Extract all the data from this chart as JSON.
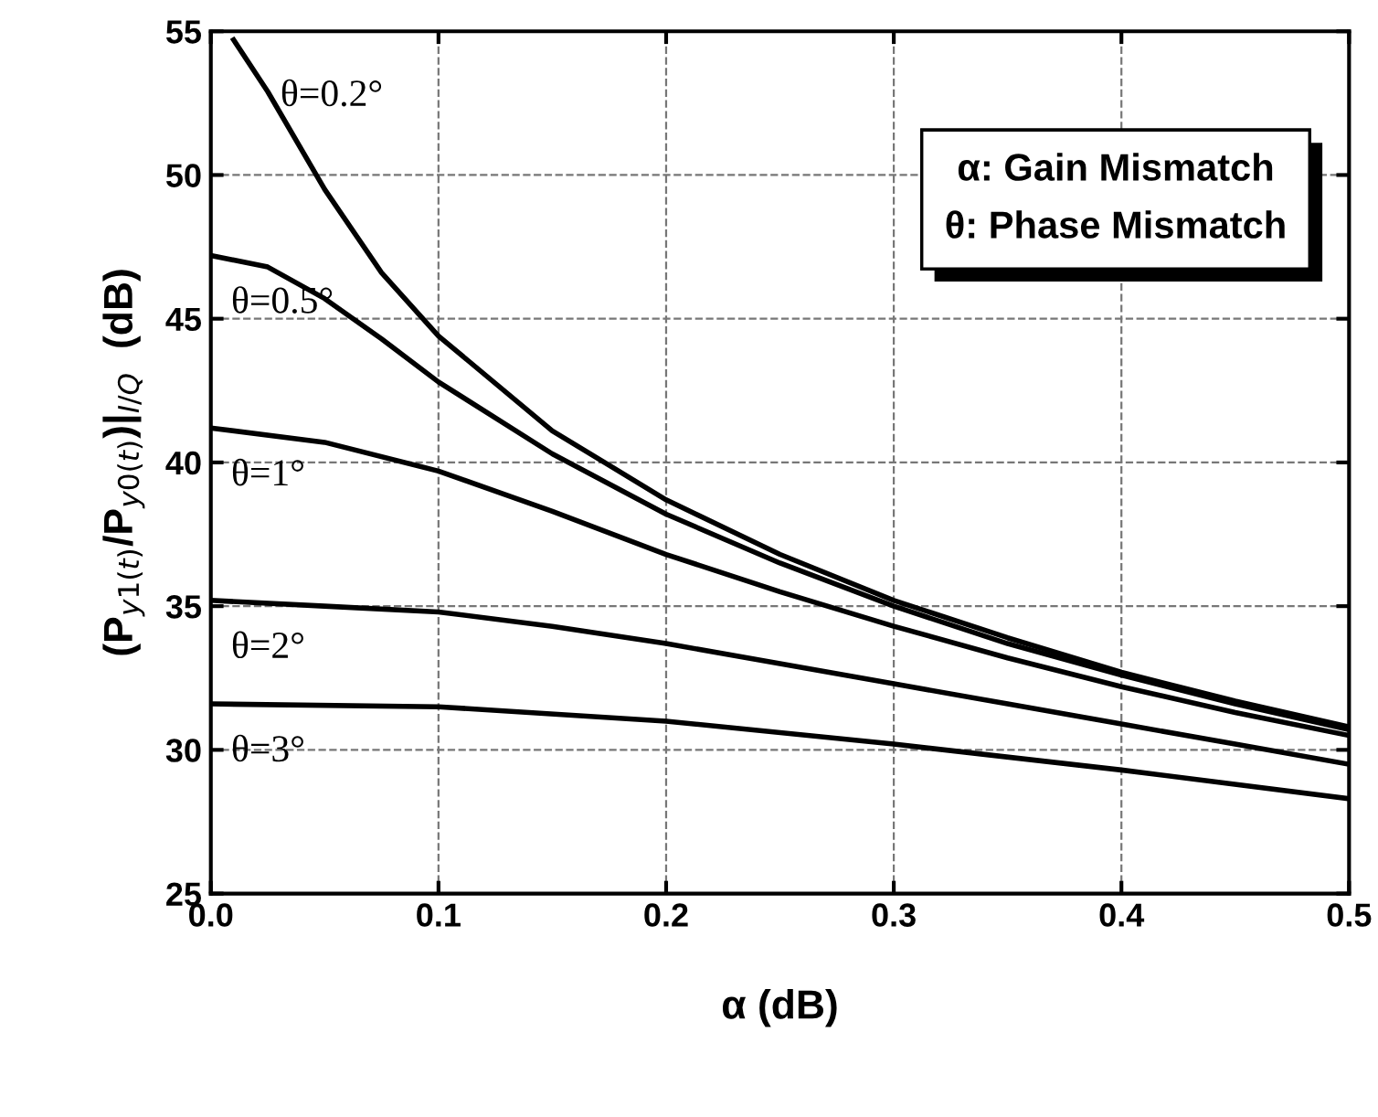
{
  "chart_data": {
    "type": "line",
    "xlabel": "α (dB)",
    "ylabel": "(P$_{y1(t)}$/P$_{y0(t)}$)|$_{I/Q}$  (dB)",
    "xlim": [
      0.0,
      0.5
    ],
    "ylim": [
      25,
      55
    ],
    "xticks": [
      {
        "value": 0.0,
        "label": "0.0"
      },
      0.1,
      0.2,
      0.3,
      0.4,
      0.5
    ],
    "yticks": [
      25,
      30,
      35,
      40,
      45,
      50,
      55
    ],
    "grid": true,
    "line_style": "solid",
    "marker": "none",
    "annotations": [
      "α: Gain Mismatch",
      "θ: Phase Mismatch"
    ],
    "series": [
      {
        "name": "θ=0.2°",
        "color": "#000000",
        "x": [
          0.01,
          0.025,
          0.05,
          0.075,
          0.1,
          0.15,
          0.2,
          0.25,
          0.3,
          0.35,
          0.4,
          0.45,
          0.5
        ],
        "values": [
          54.7,
          52.9,
          49.5,
          46.6,
          44.4,
          41.1,
          38.7,
          36.8,
          35.2,
          33.9,
          32.7,
          31.7,
          30.8
        ]
      },
      {
        "name": "θ=0.5°",
        "color": "#000000",
        "x": [
          0.0,
          0.025,
          0.05,
          0.075,
          0.1,
          0.15,
          0.2,
          0.25,
          0.3,
          0.35,
          0.4,
          0.45,
          0.5
        ],
        "values": [
          47.2,
          46.8,
          45.7,
          44.3,
          42.8,
          40.3,
          38.2,
          36.5,
          35.0,
          33.7,
          32.6,
          31.6,
          30.7
        ]
      },
      {
        "name": "θ=1°",
        "color": "#000000",
        "x": [
          0.0,
          0.05,
          0.1,
          0.15,
          0.2,
          0.25,
          0.3,
          0.35,
          0.4,
          0.45,
          0.5
        ],
        "values": [
          41.2,
          40.7,
          39.7,
          38.3,
          36.8,
          35.5,
          34.3,
          33.2,
          32.2,
          31.3,
          30.5
        ]
      },
      {
        "name": "θ=2°",
        "color": "#000000",
        "x": [
          0.0,
          0.05,
          0.1,
          0.15,
          0.2,
          0.25,
          0.3,
          0.35,
          0.4,
          0.45,
          0.5
        ],
        "values": [
          35.2,
          35.0,
          34.8,
          34.3,
          33.7,
          33.0,
          32.3,
          31.6,
          30.9,
          30.2,
          29.5
        ]
      },
      {
        "name": "θ=3°",
        "color": "#000000",
        "x": [
          0.0,
          0.1,
          0.2,
          0.3,
          0.4,
          0.5
        ],
        "values": [
          31.6,
          31.5,
          31.0,
          30.2,
          29.3,
          28.3
        ]
      }
    ]
  }
}
